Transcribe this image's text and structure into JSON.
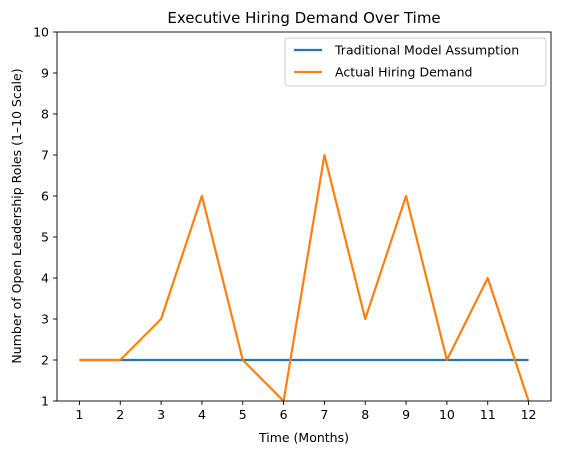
{
  "chart_data": {
    "type": "line",
    "title": "Executive Hiring Demand Over Time",
    "xlabel": "Time (Months)",
    "ylabel": "Number of Open Leadership Roles (1–10 Scale)",
    "x": [
      1,
      2,
      3,
      4,
      5,
      6,
      7,
      8,
      9,
      10,
      11,
      12
    ],
    "xlim": [
      0.45,
      12.55
    ],
    "ylim": [
      1,
      10
    ],
    "xticks": [
      1,
      2,
      3,
      4,
      5,
      6,
      7,
      8,
      9,
      10,
      11,
      12
    ],
    "yticks": [
      1,
      2,
      3,
      4,
      5,
      6,
      7,
      8,
      9,
      10
    ],
    "grid": false,
    "legend_position": "top-right",
    "series": [
      {
        "name": "Traditional Model Assumption",
        "color": "#1f77b4",
        "values": [
          2,
          2,
          2,
          2,
          2,
          2,
          2,
          2,
          2,
          2,
          2,
          2
        ]
      },
      {
        "name": "Actual Hiring Demand",
        "color": "#ff7f0e",
        "values": [
          2,
          2,
          3,
          6,
          2,
          1,
          7,
          3,
          6,
          2,
          4,
          1
        ]
      }
    ]
  }
}
